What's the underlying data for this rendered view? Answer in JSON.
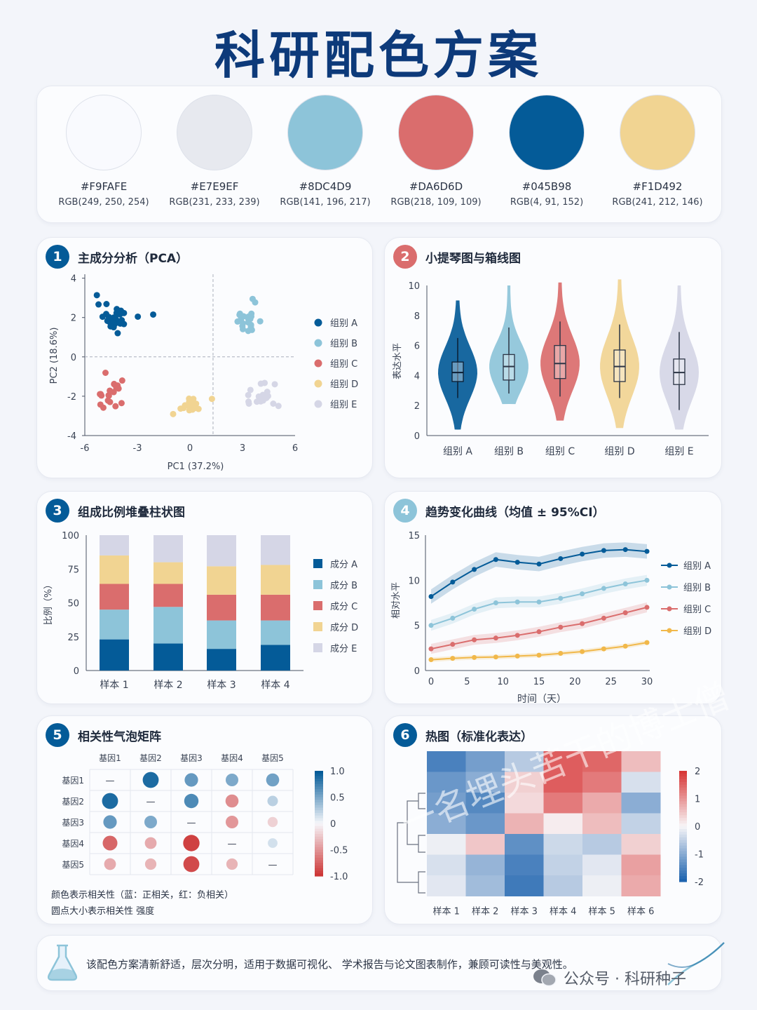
{
  "title": "科研配色方案",
  "swatches": [
    {
      "hex": "#F9FAFE",
      "rgb": "RGB(249, 250, 254)",
      "color": "#F9FAFE"
    },
    {
      "hex": "#E7E9EF",
      "rgb": "RGB(231, 233, 239)",
      "color": "#E7E9EF"
    },
    {
      "hex": "#8DC4D9",
      "rgb": "RGB(141, 196, 217)",
      "color": "#8DC4D9"
    },
    {
      "hex": "#DA6D6D",
      "rgb": "RGB(218, 109, 109)",
      "color": "#DA6D6D"
    },
    {
      "hex": "#045B98",
      "rgb": "RGB(4, 91, 152)",
      "color": "#045B98"
    },
    {
      "hex": "#F1D492",
      "rgb": "RGB(241, 212, 146)",
      "color": "#F1D492"
    }
  ],
  "panels": {
    "p1": {
      "num": "1",
      "title": "主成分分析（PCA）",
      "color": "#045B98"
    },
    "p2": {
      "num": "2",
      "title": "小提琴图与箱线图",
      "color": "#DA6D6D"
    },
    "p3": {
      "num": "3",
      "title": "组成比例堆叠柱状图",
      "color": "#045B98"
    },
    "p4": {
      "num": "4",
      "title": "趋势变化曲线（均值 ± 95%CI）",
      "color": "#8DC4D9"
    },
    "p5": {
      "num": "5",
      "title": "相关性气泡矩阵",
      "color": "#045B98"
    },
    "p6": {
      "num": "6",
      "title": "热图（标准化表达）",
      "color": "#045B98"
    }
  },
  "chart_data": [
    {
      "id": "pca",
      "type": "scatter",
      "xlabel": "PC1 (37.2%)",
      "ylabel": "PC2 (18.6%)",
      "xlim": [
        -6.2,
        6
      ],
      "ylim": [
        -4,
        4.2
      ],
      "xticks": [
        -6,
        -3,
        0,
        3,
        6
      ],
      "yticks": [
        -4,
        -2,
        0,
        2,
        4
      ],
      "series": [
        {
          "name": "组别 A",
          "color": "#045B98",
          "center": [
            -4.2,
            2
          ],
          "spread": [
            0.9,
            0.65
          ],
          "n": 30
        },
        {
          "name": "组别 B",
          "color": "#8DC4D9",
          "center": [
            3.2,
            2
          ],
          "spread": [
            0.75,
            0.7
          ],
          "n": 22
        },
        {
          "name": "组别 C",
          "color": "#DA6D6D",
          "center": [
            -4.6,
            -2
          ],
          "spread": [
            0.7,
            0.6
          ],
          "n": 20
        },
        {
          "name": "组别 D",
          "color": "#F1D492",
          "center": [
            0,
            -2.5
          ],
          "spread": [
            0.85,
            0.45
          ],
          "n": 20
        },
        {
          "name": "组别 E",
          "color": "#D5D6E6",
          "center": [
            3.8,
            -2
          ],
          "spread": [
            0.9,
            0.55
          ],
          "n": 20
        }
      ]
    },
    {
      "id": "violin",
      "type": "violin",
      "ylabel": "表达水平",
      "ylim": [
        0,
        10
      ],
      "yticks": [
        0,
        2,
        4,
        6,
        8,
        10
      ],
      "categories": [
        "组别 A",
        "组别 B",
        "组别 C",
        "组别 D",
        "组别 E"
      ],
      "colors": [
        "#045B98",
        "#8DC4D9",
        "#DA6D6D",
        "#F1D492",
        "#D5D6E6"
      ],
      "medians": [
        4.2,
        4.6,
        4.8,
        4.6,
        4.2
      ],
      "q1": [
        3.6,
        3.7,
        3.8,
        3.6,
        3.4
      ],
      "q3": [
        4.9,
        5.4,
        6.0,
        5.7,
        5.1
      ],
      "whisker_low": [
        2.5,
        2.8,
        2.6,
        2.5,
        1.7
      ],
      "whisker_high": [
        6.5,
        7.2,
        7.6,
        7.4,
        6.9
      ],
      "min": [
        0.4,
        2.1,
        1.0,
        0.5,
        0.4
      ],
      "max": [
        9.0,
        10.0,
        10.2,
        10.4,
        10.0
      ]
    },
    {
      "id": "stacked",
      "type": "bar",
      "ylabel": "比例（%）",
      "ylim": [
        0,
        100
      ],
      "yticks": [
        0,
        25,
        50,
        75,
        100
      ],
      "categories": [
        "样本 1",
        "样本 2",
        "样本 3",
        "样本 4"
      ],
      "series": [
        {
          "name": "成分 A",
          "color": "#045B98",
          "values": [
            23,
            20,
            16,
            19
          ]
        },
        {
          "name": "成分 B",
          "color": "#8DC4D9",
          "values": [
            22,
            27,
            21,
            18
          ]
        },
        {
          "name": "成分 C",
          "color": "#DA6D6D",
          "values": [
            19,
            17,
            19,
            19
          ]
        },
        {
          "name": "成分 D",
          "color": "#F1D492",
          "values": [
            21,
            16,
            21,
            22
          ]
        },
        {
          "name": "成分 E",
          "color": "#D5D6E6",
          "values": [
            15,
            20,
            23,
            22
          ]
        }
      ]
    },
    {
      "id": "trend",
      "type": "line",
      "xlabel": "时间（天）",
      "ylabel": "相对水平",
      "xlim": [
        0,
        30
      ],
      "ylim": [
        0,
        15
      ],
      "xticks": [
        0,
        5,
        10,
        15,
        20,
        25,
        30
      ],
      "yticks": [
        0,
        5,
        10,
        15
      ],
      "x": [
        0,
        3,
        6,
        9,
        12,
        15,
        18,
        21,
        24,
        27,
        30
      ],
      "series": [
        {
          "name": "组别 A",
          "color": "#045B98",
          "values": [
            8.2,
            9.8,
            11.2,
            12.3,
            12.0,
            11.8,
            12.4,
            12.9,
            13.3,
            13.4,
            13.2
          ],
          "ci": 0.8
        },
        {
          "name": "组别 B",
          "color": "#8DC4D9",
          "values": [
            5.0,
            5.8,
            6.8,
            7.5,
            7.6,
            7.6,
            8.0,
            8.5,
            9.1,
            9.6,
            10.0
          ],
          "ci": 0.6
        },
        {
          "name": "组别 C",
          "color": "#DA6D6D",
          "values": [
            2.4,
            2.9,
            3.4,
            3.6,
            3.9,
            4.3,
            4.8,
            5.2,
            5.8,
            6.4,
            7.0
          ],
          "ci": 0.55
        },
        {
          "name": "组别 D",
          "color": "#F1B84A",
          "values": [
            1.2,
            1.35,
            1.45,
            1.5,
            1.6,
            1.7,
            1.9,
            2.1,
            2.4,
            2.7,
            3.1
          ],
          "ci": 0.25
        }
      ]
    },
    {
      "id": "bubble",
      "type": "heatmap",
      "labels": [
        "基因1",
        "基因2",
        "基因3",
        "基因4",
        "基因5"
      ],
      "matrix": [
        [
          null,
          0.9,
          0.6,
          0.5,
          0.55
        ],
        [
          0.9,
          null,
          0.7,
          -0.55,
          0.25
        ],
        [
          0.6,
          0.5,
          null,
          -0.5,
          -0.2
        ],
        [
          -0.75,
          -0.4,
          -0.95,
          null,
          0.15
        ],
        [
          -0.4,
          -0.35,
          -0.9,
          -0.35,
          null
        ]
      ],
      "diagonal_symbol": "—",
      "colorbar_ticks": [
        "1.0",
        "0.5",
        "0",
        "-0.5",
        "-1.0"
      ],
      "colorbar_values": [
        1,
        0.5,
        0,
        -0.5,
        -1
      ],
      "note_line1": "颜色表示相关性（蓝：正相关，红：负相关）",
      "note_line2": "圆点大小表示相关性 强度"
    },
    {
      "id": "heatmap",
      "type": "heatmap",
      "columns": [
        "样本 1",
        "样本 2",
        "样本 3",
        "样本 4",
        "样本 5",
        "样本 6"
      ],
      "matrix": [
        [
          -1.6,
          -1.2,
          -0.6,
          1.6,
          1.5,
          0.6
        ],
        [
          -1.3,
          -1.0,
          0.4,
          1.6,
          1.3,
          -0.3
        ],
        [
          -1.2,
          -1.5,
          0.3,
          1.3,
          0.8,
          -1.0
        ],
        [
          -1.0,
          -1.3,
          0.7,
          0.1,
          0.6,
          -0.5
        ],
        [
          -0.1,
          0.5,
          -1.4,
          -0.4,
          -0.6,
          0.4
        ],
        [
          -0.3,
          -0.9,
          -1.6,
          -0.5,
          -0.2,
          0.9
        ],
        [
          -0.2,
          -0.8,
          -1.7,
          -0.6,
          -0.1,
          0.8
        ]
      ],
      "colorbar_ticks": [
        "2",
        "1",
        "0",
        "-1",
        "-2"
      ],
      "colorbar_values": [
        2,
        1,
        0,
        -1,
        -2
      ]
    }
  ],
  "footer": {
    "text": "该配色方案清新舒适，层次分明，适用于数据可视化、 学术报告与论文图表制作，兼顾可读性与美观性。"
  },
  "wechat": {
    "text": "公众号 · 科研种子"
  },
  "watermark": {
    "text": "一名埋头苦干的博士僧"
  }
}
